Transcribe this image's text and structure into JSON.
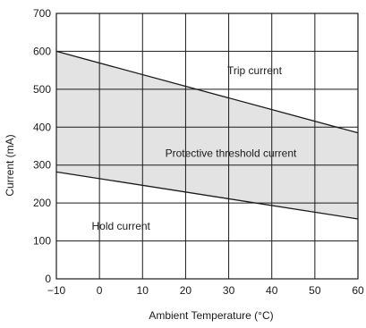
{
  "chart_data": {
    "type": "area",
    "xlabel": "Ambient Temperature (°C)",
    "ylabel": "Current (mA)",
    "xlim": [
      -10,
      60
    ],
    "ylim": [
      0,
      700
    ],
    "x_ticks": [
      "−10",
      "0",
      "10",
      "20",
      "30",
      "40",
      "50",
      "60"
    ],
    "y_ticks": [
      "0",
      "100",
      "200",
      "300",
      "400",
      "500",
      "600",
      "700"
    ],
    "grid": true,
    "series": [
      {
        "name": "Trip current",
        "x": [
          -10,
          60
        ],
        "values": [
          600,
          385
        ]
      },
      {
        "name": "Hold current",
        "x": [
          -10,
          60
        ],
        "values": [
          282,
          158
        ]
      }
    ],
    "band": {
      "label": "Protective threshold current",
      "color": "#e3e3e3"
    },
    "annotations": [
      {
        "text": "Trip current",
        "x": 36,
        "y": 540
      },
      {
        "text": "Protective threshold current",
        "x": 30.5,
        "y": 322
      },
      {
        "text": "Hold current",
        "x": 5,
        "y": 130
      }
    ]
  }
}
